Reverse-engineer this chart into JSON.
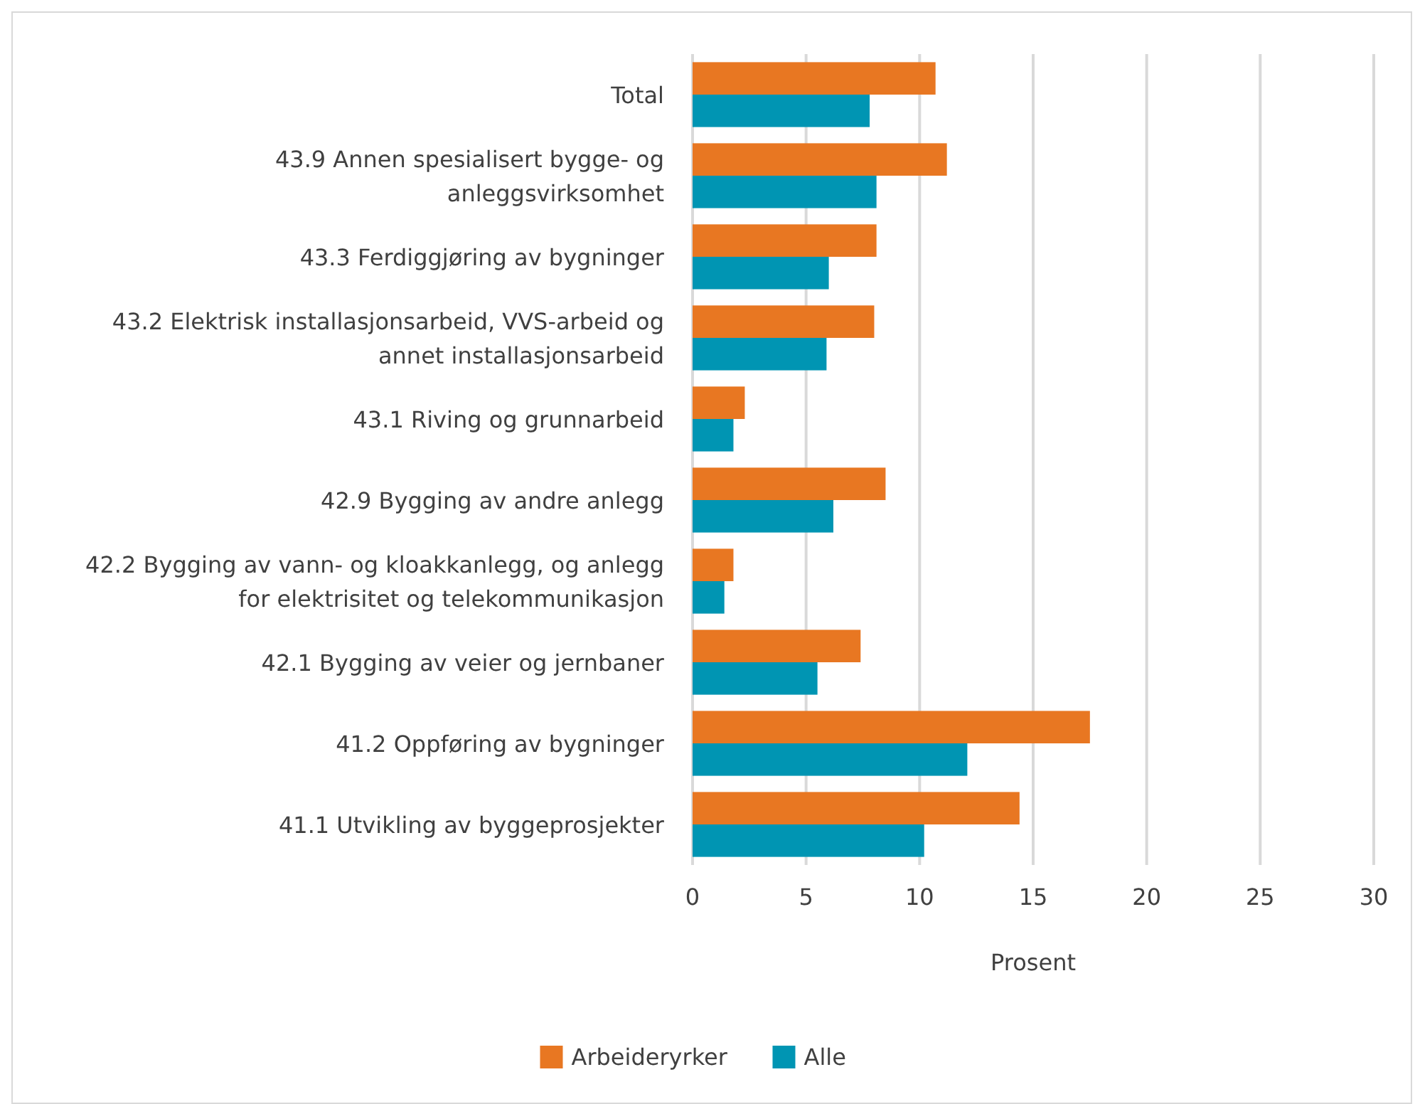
{
  "chart_data": {
    "type": "bar",
    "orientation": "horizontal",
    "xlabel": "Prosent",
    "categories": [
      "Total",
      "43.9 Annen spesialisert bygge- og anleggsvirksomhet",
      "43.3 Ferdiggjøring av bygninger",
      "43.2 Elektrisk installasjonsarbeid, VVS-arbeid og annet installasjonsarbeid",
      "43.1 Riving og grunnarbeid",
      "42.9 Bygging av andre anlegg",
      "42.2 Bygging av vann- og kloakkanlegg, og anlegg for elektrisitet og telekommunikasjon",
      "42.1 Bygging av veier og jernbaner",
      "41.2 Oppføring av bygninger",
      "41.1 Utvikling av byggeprosjekter"
    ],
    "series": [
      {
        "name": "Arbeideryrker",
        "color": "#e87722",
        "values": [
          10.7,
          11.2,
          8.1,
          8.0,
          2.3,
          8.5,
          1.8,
          7.4,
          17.5,
          14.4
        ]
      },
      {
        "name": "Alle",
        "color": "#0095b3",
        "values": [
          7.8,
          8.1,
          6.0,
          5.9,
          1.8,
          6.2,
          1.4,
          5.5,
          12.1,
          10.2
        ]
      }
    ],
    "xlim": [
      0,
      30
    ],
    "xticks": [
      0,
      5,
      10,
      15,
      20,
      25,
      30
    ],
    "grid": "x",
    "legend": "bottom"
  }
}
